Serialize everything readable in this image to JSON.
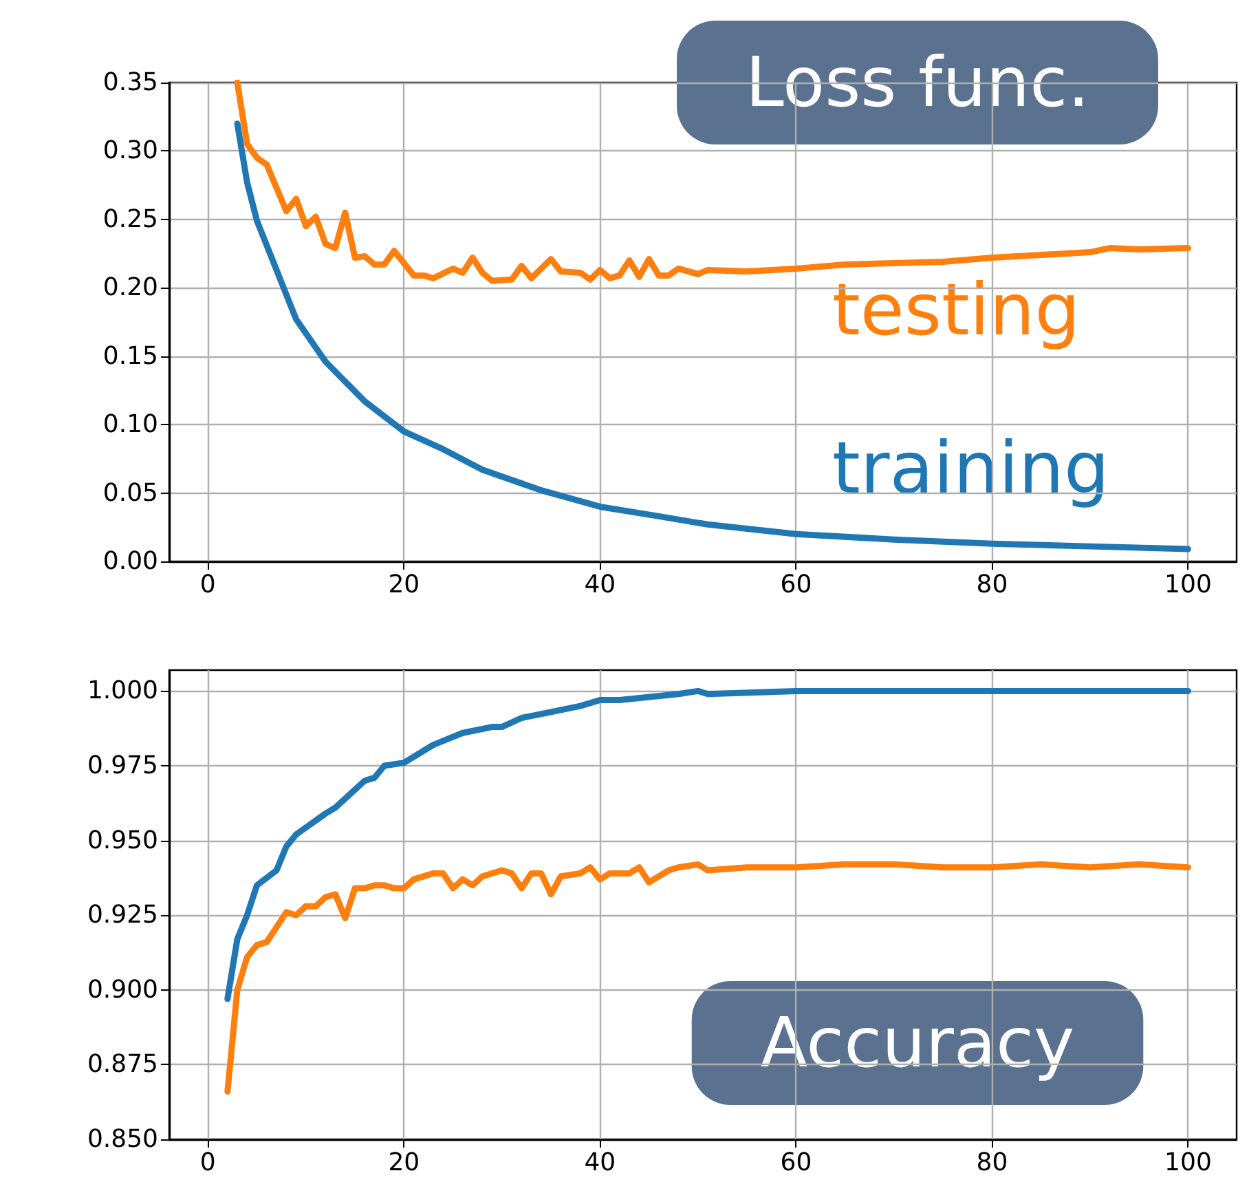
{
  "chart_data": [
    {
      "type": "line",
      "annotations": [
        "Loss func."
      ],
      "xlim": [
        -3.95,
        104.95
      ],
      "xticks": [
        0,
        20,
        40,
        60,
        80,
        100
      ],
      "ylim": [
        0,
        0.35
      ],
      "yticks": [
        {
          "value": 0,
          "label": "0.00"
        },
        0.05,
        {
          "value": 0.1,
          "label": "0.10"
        },
        0.15,
        {
          "value": 0.2,
          "label": "0.20"
        },
        0.25,
        {
          "value": 0.3,
          "label": "0.30"
        },
        0.35
      ],
      "grid": true,
      "legend": false,
      "marker": "none",
      "line_style": "solid",
      "series": [
        {
          "name": "training",
          "color": "#1f77b4",
          "x": [
            3,
            4,
            5,
            7,
            9,
            12,
            16,
            20,
            24,
            28,
            34,
            40,
            46,
            51,
            60,
            70,
            80,
            90,
            100
          ],
          "values": [
            0.32,
            0.277,
            0.249,
            0.213,
            0.177,
            0.146,
            0.117,
            0.095,
            0.082,
            0.067,
            0.052,
            0.04,
            0.033,
            0.027,
            0.02,
            0.016,
            0.013,
            0.011,
            0.009
          ]
        },
        {
          "name": "testing",
          "color": "#ff7f0e",
          "x": [
            3,
            4,
            5,
            6,
            8,
            9,
            10,
            11,
            12,
            13,
            14,
            15,
            16,
            17,
            18,
            19,
            21,
            22,
            23,
            25,
            26,
            27,
            28,
            29,
            31,
            32,
            33,
            35,
            36,
            38,
            39,
            40,
            41,
            42,
            43,
            44,
            45,
            46,
            47,
            48,
            50,
            51,
            55,
            60,
            65,
            70,
            75,
            80,
            85,
            90,
            92,
            95,
            100
          ],
          "values": [
            0.35,
            0.305,
            0.295,
            0.29,
            0.256,
            0.265,
            0.245,
            0.252,
            0.232,
            0.229,
            0.255,
            0.222,
            0.223,
            0.217,
            0.217,
            0.227,
            0.209,
            0.209,
            0.207,
            0.214,
            0.211,
            0.222,
            0.211,
            0.205,
            0.206,
            0.216,
            0.207,
            0.221,
            0.212,
            0.211,
            0.206,
            0.213,
            0.207,
            0.209,
            0.22,
            0.208,
            0.221,
            0.209,
            0.209,
            0.214,
            0.21,
            0.213,
            0.212,
            0.214,
            0.217,
            0.218,
            0.219,
            0.222,
            0.224,
            0.226,
            0.229,
            0.228,
            0.229
          ]
        }
      ]
    },
    {
      "type": "line",
      "annotations": [
        "Accuracy"
      ],
      "xlim": [
        -3.95,
        104.95
      ],
      "xticks": [
        0,
        20,
        40,
        60,
        80,
        100
      ],
      "ylim": [
        0.85,
        1.007
      ],
      "yticks": [
        {
          "value": 0.85,
          "label": "0.850"
        },
        0.875,
        {
          "value": 0.9,
          "label": "0.900"
        },
        0.925,
        {
          "value": 0.95,
          "label": "0.950"
        },
        0.975,
        {
          "value": 1,
          "label": "1.000"
        }
      ],
      "grid": true,
      "legend": false,
      "marker": "none",
      "line_style": "solid",
      "series": [
        {
          "color": "#1f77b4",
          "x": [
            2,
            3,
            4,
            5,
            7,
            8,
            9,
            12,
            13,
            16,
            17,
            18,
            20,
            23,
            26,
            29,
            30,
            32,
            35,
            38,
            40,
            42,
            48,
            50,
            51,
            60,
            70,
            80,
            90,
            100
          ],
          "values": [
            0.897,
            0.917,
            0.925,
            0.935,
            0.94,
            0.948,
            0.952,
            0.959,
            0.961,
            0.97,
            0.971,
            0.975,
            0.976,
            0.982,
            0.986,
            0.988,
            0.988,
            0.991,
            0.993,
            0.995,
            0.997,
            0.997,
            0.999,
            1.0,
            0.999,
            1.0,
            1.0,
            1.0,
            1.0,
            1.0
          ]
        },
        {
          "color": "#ff7f0e",
          "x": [
            2,
            3,
            4,
            5,
            6,
            8,
            9,
            10,
            11,
            12,
            13,
            14,
            15,
            16,
            17,
            18,
            19,
            20,
            21,
            23,
            24,
            25,
            26,
            27,
            28,
            30,
            31,
            32,
            33,
            34,
            35,
            36,
            38,
            39,
            40,
            41,
            43,
            44,
            45,
            47,
            48,
            50,
            51,
            55,
            60,
            65,
            70,
            75,
            80,
            85,
            90,
            95,
            100
          ],
          "values": [
            0.866,
            0.9,
            0.911,
            0.915,
            0.916,
            0.926,
            0.925,
            0.928,
            0.928,
            0.931,
            0.932,
            0.924,
            0.934,
            0.934,
            0.935,
            0.935,
            0.934,
            0.934,
            0.937,
            0.939,
            0.939,
            0.934,
            0.937,
            0.935,
            0.938,
            0.94,
            0.939,
            0.934,
            0.939,
            0.939,
            0.932,
            0.938,
            0.939,
            0.941,
            0.937,
            0.939,
            0.939,
            0.941,
            0.936,
            0.94,
            0.941,
            0.942,
            0.94,
            0.941,
            0.941,
            0.942,
            0.942,
            0.941,
            0.941,
            0.942,
            0.941,
            0.942,
            0.941
          ]
        }
      ]
    }
  ]
}
